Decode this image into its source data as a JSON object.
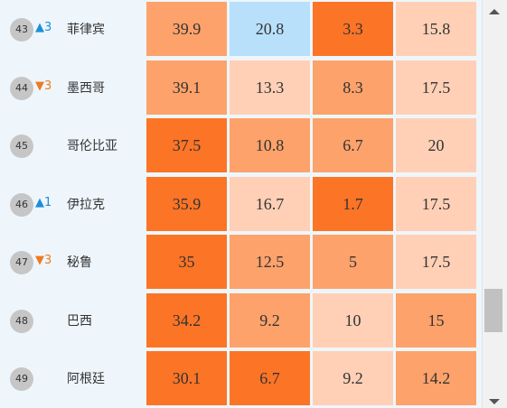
{
  "rows": [
    {
      "rank": "43",
      "change": "▲3",
      "dir": "up",
      "country": "菲律宾",
      "values": [
        "39.9",
        "20.8",
        "3.3",
        "15.8"
      ],
      "colors": [
        "#fca26a",
        "#b8e0fb",
        "#fc7426",
        "#ffd0b6"
      ]
    },
    {
      "rank": "44",
      "change": "▼3",
      "dir": "down",
      "country": "墨西哥",
      "values": [
        "39.1",
        "13.3",
        "8.3",
        "17.5"
      ],
      "colors": [
        "#fca26a",
        "#ffd0b6",
        "#fca26a",
        "#ffd0b6"
      ]
    },
    {
      "rank": "45",
      "change": "",
      "dir": "",
      "country": "哥伦比亚",
      "values": [
        "37.5",
        "10.8",
        "6.7",
        "20"
      ],
      "colors": [
        "#fc7426",
        "#fca26a",
        "#fca26a",
        "#ffd0b6"
      ]
    },
    {
      "rank": "46",
      "change": "▲1",
      "dir": "up",
      "country": "伊拉克",
      "values": [
        "35.9",
        "16.7",
        "1.7",
        "17.5"
      ],
      "colors": [
        "#fc7426",
        "#ffd0b6",
        "#fc7426",
        "#ffd0b6"
      ]
    },
    {
      "rank": "47",
      "change": "▼3",
      "dir": "down",
      "country": "秘鲁",
      "values": [
        "35",
        "12.5",
        "5",
        "17.5"
      ],
      "colors": [
        "#fc7426",
        "#fca26a",
        "#fca26a",
        "#ffd0b6"
      ]
    },
    {
      "rank": "48",
      "change": "",
      "dir": "",
      "country": "巴西",
      "values": [
        "34.2",
        "9.2",
        "10",
        "15"
      ],
      "colors": [
        "#fc7426",
        "#fca26a",
        "#ffd0b6",
        "#fca26a"
      ]
    },
    {
      "rank": "49",
      "change": "",
      "dir": "",
      "country": "阿根廷",
      "values": [
        "30.1",
        "6.7",
        "9.2",
        "14.2"
      ],
      "colors": [
        "#fc7426",
        "#fc7426",
        "#ffd0b6",
        "#fca26a"
      ]
    }
  ],
  "scrollbar": {
    "up_icon": "triangle-up-icon",
    "down_icon": "triangle-down-icon"
  }
}
